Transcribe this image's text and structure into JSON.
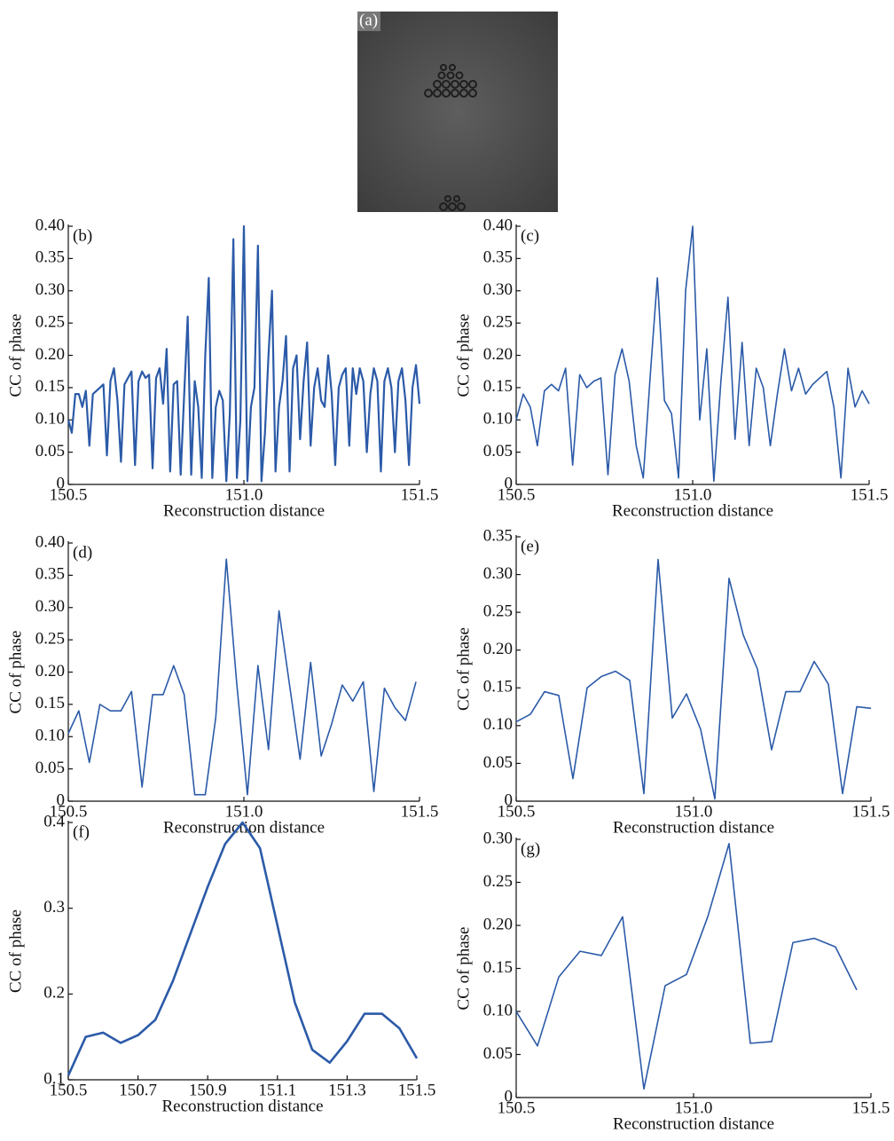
{
  "image_panel": {
    "label": "(a)"
  },
  "chart_data": [
    {
      "type": "line",
      "annotation": "(b)",
      "xlabel": "Reconstruction distance",
      "ylabel": "CC of phase",
      "xlim": [
        150.5,
        151.5
      ],
      "xticks": [
        150.5,
        {
          "value": 151.0,
          "label": "151.0"
        },
        151.5
      ],
      "ylim": [
        0,
        0.4
      ],
      "yticks": [
        0,
        0.05,
        {
          "value": 0.1,
          "label": "0.10"
        },
        0.15,
        {
          "value": 0.2,
          "label": "0.20"
        },
        0.25,
        {
          "value": 0.3,
          "label": "0.30"
        },
        0.35,
        {
          "value": 0.4,
          "label": "0.40"
        }
      ],
      "series": [
        {
          "color": "#2b5aa8",
          "x": [
            150.5,
            150.51,
            150.52,
            150.53,
            150.54,
            150.55,
            150.56,
            150.57,
            150.58,
            150.59,
            150.6,
            150.61,
            150.62,
            150.63,
            150.64,
            150.65,
            150.66,
            150.67,
            150.68,
            150.69,
            150.7,
            150.71,
            150.72,
            150.73,
            150.74,
            150.75,
            150.76,
            150.77,
            150.78,
            150.79,
            150.8,
            150.81,
            150.82,
            150.83,
            150.84,
            150.85,
            150.86,
            150.87,
            150.88,
            150.89,
            150.9,
            150.91,
            150.92,
            150.93,
            150.94,
            150.95,
            150.96,
            150.97,
            150.98,
            150.99,
            151.0,
            151.01,
            151.02,
            151.03,
            151.04,
            151.05,
            151.06,
            151.07,
            151.08,
            151.09,
            151.1,
            151.11,
            151.12,
            151.13,
            151.14,
            151.15,
            151.16,
            151.17,
            151.18,
            151.19,
            151.2,
            151.21,
            151.22,
            151.23,
            151.24,
            151.25,
            151.26,
            151.27,
            151.28,
            151.29,
            151.3,
            151.31,
            151.32,
            151.33,
            151.34,
            151.35,
            151.36,
            151.37,
            151.38,
            151.39,
            151.4,
            151.41,
            151.42,
            151.43,
            151.44,
            151.45,
            151.46,
            151.47,
            151.48,
            151.49,
            151.5
          ],
          "values": [
            0.1,
            0.08,
            0.14,
            0.14,
            0.12,
            0.145,
            0.06,
            0.14,
            0.145,
            0.15,
            0.155,
            0.045,
            0.16,
            0.18,
            0.13,
            0.035,
            0.155,
            0.165,
            0.175,
            0.03,
            0.16,
            0.175,
            0.165,
            0.17,
            0.025,
            0.165,
            0.18,
            0.125,
            0.21,
            0.02,
            0.155,
            0.16,
            0.015,
            0.14,
            0.26,
            0.015,
            0.16,
            0.12,
            0.01,
            0.2,
            0.32,
            0.01,
            0.12,
            0.145,
            0.13,
            0.005,
            0.11,
            0.38,
            0.01,
            0.1,
            0.4,
            0.005,
            0.12,
            0.15,
            0.37,
            0.005,
            0.08,
            0.2,
            0.3,
            0.02,
            0.12,
            0.16,
            0.23,
            0.02,
            0.18,
            0.2,
            0.07,
            0.16,
            0.22,
            0.06,
            0.15,
            0.18,
            0.13,
            0.12,
            0.2,
            0.14,
            0.03,
            0.15,
            0.17,
            0.18,
            0.06,
            0.18,
            0.14,
            0.18,
            0.16,
            0.05,
            0.14,
            0.18,
            0.16,
            0.02,
            0.16,
            0.18,
            0.15,
            0.05,
            0.16,
            0.18,
            0.13,
            0.03,
            0.15,
            0.185,
            0.125
          ]
        }
      ]
    },
    {
      "type": "line",
      "annotation": "(c)",
      "xlabel": "Reconstruction distance",
      "ylabel": "CC of phase",
      "xlim": [
        150.5,
        151.5
      ],
      "xticks": [
        150.5,
        {
          "value": 151.0,
          "label": "151.0"
        },
        151.5
      ],
      "ylim": [
        0,
        0.4
      ],
      "yticks": [
        0,
        0.05,
        {
          "value": 0.1,
          "label": "0.10"
        },
        0.15,
        {
          "value": 0.2,
          "label": "0.20"
        },
        0.25,
        {
          "value": 0.3,
          "label": "0.30"
        },
        0.35,
        {
          "value": 0.4,
          "label": "0.40"
        }
      ],
      "series": [
        {
          "color": "#2b5aa8",
          "x": [
            150.5,
            150.52,
            150.54,
            150.56,
            150.58,
            150.6,
            150.62,
            150.64,
            150.66,
            150.68,
            150.7,
            150.72,
            150.74,
            150.76,
            150.78,
            150.8,
            150.82,
            150.84,
            150.86,
            150.88,
            150.9,
            150.92,
            150.94,
            150.96,
            150.98,
            151.0,
            151.02,
            151.04,
            151.06,
            151.08,
            151.1,
            151.12,
            151.14,
            151.16,
            151.18,
            151.2,
            151.22,
            151.24,
            151.26,
            151.28,
            151.3,
            151.32,
            151.34,
            151.36,
            151.38,
            151.4,
            151.42,
            151.44,
            151.46,
            151.48,
            151.5
          ],
          "values": [
            0.1,
            0.14,
            0.12,
            0.06,
            0.145,
            0.155,
            0.145,
            0.18,
            0.03,
            0.17,
            0.15,
            0.16,
            0.165,
            0.015,
            0.17,
            0.21,
            0.16,
            0.06,
            0.01,
            0.17,
            0.32,
            0.13,
            0.11,
            0.01,
            0.3,
            0.4,
            0.1,
            0.21,
            0.005,
            0.16,
            0.29,
            0.07,
            0.22,
            0.06,
            0.18,
            0.15,
            0.06,
            0.14,
            0.21,
            0.145,
            0.18,
            0.14,
            0.155,
            0.165,
            0.175,
            0.12,
            0.01,
            0.18,
            0.12,
            0.145,
            0.125
          ]
        }
      ]
    },
    {
      "type": "line",
      "annotation": "(d)",
      "xlabel": "Reconstruction distance",
      "ylabel": "CC of phase",
      "xlim": [
        150.5,
        151.5
      ],
      "xticks": [
        150.5,
        {
          "value": 151.0,
          "label": "151.0"
        },
        151.5
      ],
      "ylim": [
        0,
        0.4
      ],
      "yticks": [
        0,
        0.05,
        {
          "value": 0.1,
          "label": "0.10"
        },
        0.15,
        {
          "value": 0.2,
          "label": "0.20"
        },
        0.25,
        {
          "value": 0.3,
          "label": "0.30"
        },
        0.35,
        {
          "value": 0.4,
          "label": "0.40"
        }
      ],
      "series": [
        {
          "color": "#2b5aa8",
          "x": [
            150.5,
            150.53,
            150.56,
            150.59,
            150.62,
            150.65,
            150.68,
            150.71,
            150.74,
            150.77,
            150.8,
            150.83,
            150.86,
            150.89,
            150.92,
            150.95,
            150.98,
            151.01,
            151.04,
            151.07,
            151.1,
            151.13,
            151.16,
            151.19,
            151.22,
            151.25,
            151.28,
            151.31,
            151.34,
            151.37,
            151.4,
            151.43,
            151.46,
            151.49
          ],
          "values": [
            0.105,
            0.14,
            0.06,
            0.15,
            0.14,
            0.14,
            0.17,
            0.022,
            0.165,
            0.165,
            0.21,
            0.165,
            0.01,
            0.01,
            0.13,
            0.375,
            0.18,
            0.01,
            0.21,
            0.08,
            0.295,
            0.18,
            0.065,
            0.215,
            0.07,
            0.12,
            0.18,
            0.155,
            0.185,
            0.015,
            0.175,
            0.145,
            0.125,
            0.185
          ]
        }
      ]
    },
    {
      "type": "line",
      "annotation": "(e)",
      "xlabel": "Reconstruction distance",
      "ylabel": "CC of phase",
      "xlim": [
        150.5,
        151.5
      ],
      "xticks": [
        150.5,
        {
          "value": 151.0,
          "label": "151.0"
        },
        151.5
      ],
      "ylim": [
        0,
        0.35
      ],
      "yticks": [
        0,
        0.05,
        {
          "value": 0.1,
          "label": "0.10"
        },
        0.15,
        {
          "value": 0.2,
          "label": "0.20"
        },
        0.25,
        {
          "value": 0.3,
          "label": "0.30"
        },
        0.35
      ],
      "series": [
        {
          "color": "#2b5aa8",
          "x": [
            150.5,
            150.54,
            150.58,
            150.62,
            150.66,
            150.7,
            150.74,
            150.78,
            150.82,
            150.86,
            150.9,
            150.94,
            150.98,
            151.02,
            151.06,
            151.1,
            151.14,
            151.18,
            151.22,
            151.26,
            151.3,
            151.34,
            151.38,
            151.42,
            151.46,
            151.5
          ],
          "values": [
            0.105,
            0.115,
            0.145,
            0.14,
            0.03,
            0.15,
            0.165,
            0.172,
            0.16,
            0.01,
            0.32,
            0.11,
            0.142,
            0.095,
            0.003,
            0.295,
            0.22,
            0.175,
            0.068,
            0.145,
            0.145,
            0.185,
            0.155,
            0.01,
            0.125,
            0.123
          ]
        }
      ]
    },
    {
      "type": "line",
      "annotation": "(f)",
      "xlabel": "Reconstruction distance",
      "ylabel": "CC of phase",
      "xlim": [
        150.5,
        151.5
      ],
      "xticks": [
        150.5,
        150.7,
        150.9,
        151.1,
        151.3,
        151.5
      ],
      "ylim": [
        0.1,
        0.4
      ],
      "yticks": [
        0.1,
        0.2,
        0.3,
        0.4
      ],
      "series": [
        {
          "color": "#2b5aa8",
          "x": [
            150.5,
            150.55,
            150.6,
            150.65,
            150.7,
            150.75,
            150.8,
            150.85,
            150.9,
            150.95,
            151.0,
            151.05,
            151.1,
            151.15,
            151.2,
            151.25,
            151.3,
            151.35,
            151.4,
            151.45,
            151.5
          ],
          "values": [
            0.105,
            0.15,
            0.155,
            0.143,
            0.152,
            0.17,
            0.215,
            0.27,
            0.325,
            0.375,
            0.4,
            0.37,
            0.28,
            0.19,
            0.135,
            0.12,
            0.145,
            0.177,
            0.177,
            0.16,
            0.125
          ]
        }
      ]
    },
    {
      "type": "line",
      "annotation": "(g)",
      "xlabel": "Reconstruction distance",
      "ylabel": "CC of phase",
      "xlim": [
        150.5,
        151.5
      ],
      "xticks": [
        150.5,
        {
          "value": 151.0,
          "label": "151.0"
        },
        151.5
      ],
      "ylim": [
        0,
        0.3
      ],
      "yticks": [
        0,
        0.05,
        {
          "value": 0.1,
          "label": "0.10"
        },
        0.15,
        {
          "value": 0.2,
          "label": "0.20"
        },
        0.25,
        {
          "value": 0.3,
          "label": "0.30"
        }
      ],
      "series": [
        {
          "color": "#2b5aa8",
          "x": [
            150.5,
            150.56,
            150.62,
            150.68,
            150.74,
            150.8,
            150.86,
            150.92,
            150.98,
            151.04,
            151.1,
            151.16,
            151.22,
            151.28,
            151.34,
            151.4,
            151.46
          ],
          "values": [
            0.1,
            0.06,
            0.14,
            0.17,
            0.165,
            0.21,
            0.01,
            0.13,
            0.143,
            0.21,
            0.295,
            0.063,
            0.065,
            0.18,
            0.185,
            0.175,
            0.125
          ]
        }
      ]
    }
  ]
}
